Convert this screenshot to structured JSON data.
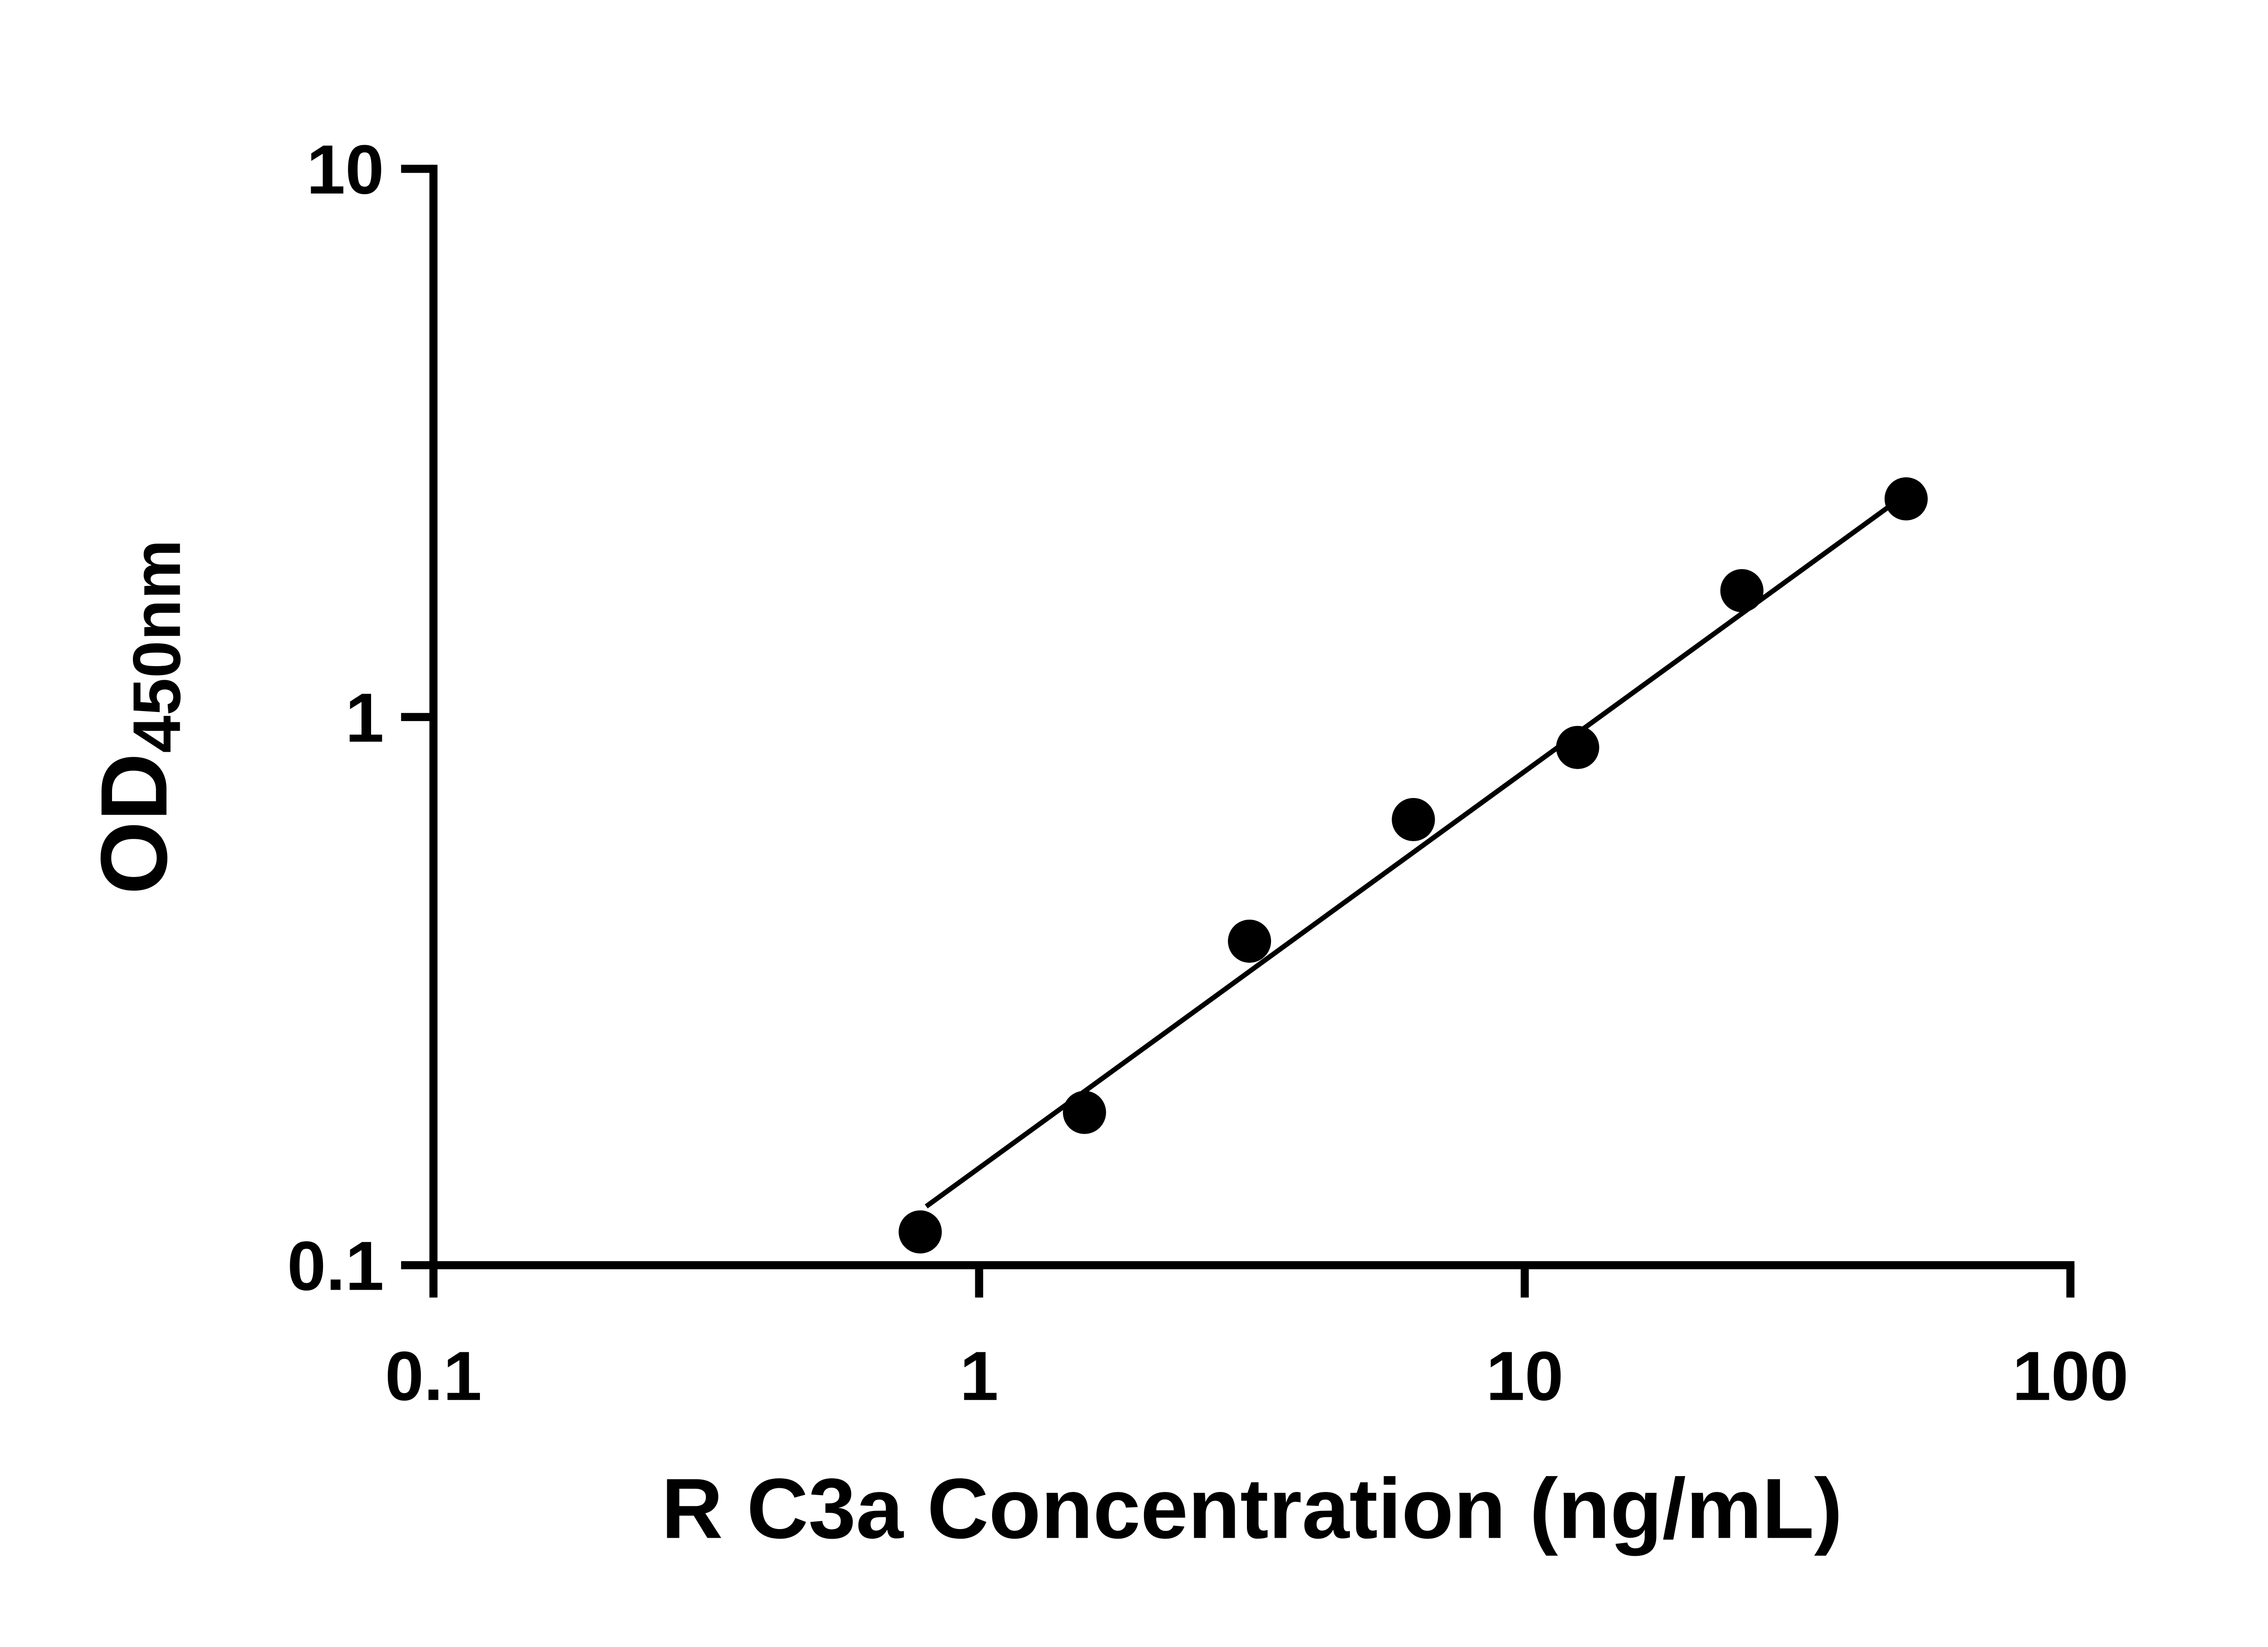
{
  "chart_data": {
    "type": "scatter",
    "title": "",
    "xlabel": "R C3a Concentration (ng/mL)",
    "ylabel": "OD450nm",
    "ylabel_main": "OD",
    "ylabel_sub": "450nm",
    "x_scale": "log",
    "y_scale": "log",
    "xlim": [
      0.1,
      100
    ],
    "ylim": [
      0.1,
      10
    ],
    "x_ticks": [
      0.1,
      1,
      10,
      100
    ],
    "x_tick_labels": [
      "0.1",
      "1",
      "10",
      "100"
    ],
    "y_ticks": [
      0.1,
      1,
      10
    ],
    "y_tick_labels": [
      "0.1",
      "1",
      "10"
    ],
    "grid": false,
    "legend_position": "none",
    "marker_color": "#000000",
    "line_color": "#000000",
    "axis_color": "#000000",
    "background": "#ffffff",
    "points": [
      {
        "x": 0.78,
        "y": 0.115
      },
      {
        "x": 1.56,
        "y": 0.19
      },
      {
        "x": 3.13,
        "y": 0.39
      },
      {
        "x": 6.25,
        "y": 0.65
      },
      {
        "x": 12.5,
        "y": 0.88
      },
      {
        "x": 25,
        "y": 1.7
      },
      {
        "x": 50,
        "y": 2.5
      }
    ],
    "trend_line": {
      "x1": 0.8,
      "y1": 0.128,
      "x2": 50,
      "y2": 2.55
    }
  }
}
